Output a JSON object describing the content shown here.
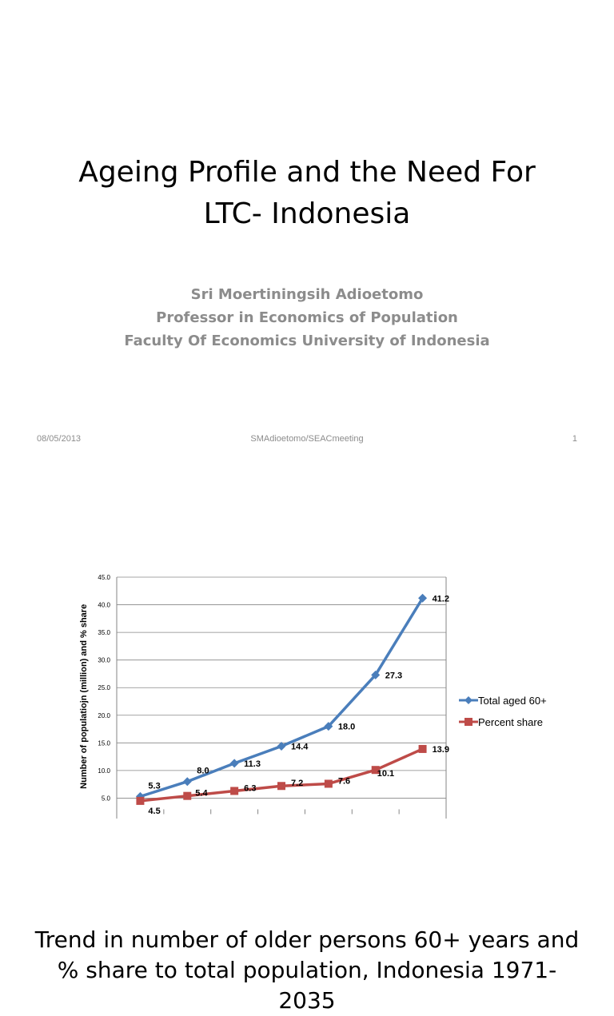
{
  "slide1": {
    "title_lines": [
      "Ageing Profile and the Need For",
      "LTC- Indonesia"
    ],
    "author_lines": [
      "Sri Moertiningsih Adioetomo",
      "Professor in Economics of Population",
      "Faculty Of Economics University of Indonesia"
    ],
    "footer": {
      "date": "08/05/2013",
      "center": "SMAdioetomo/SEACmeeting",
      "page": "1"
    }
  },
  "slide2": {
    "title_lines": [
      "Trend in number of older persons 60+ years and",
      "% share to total population, Indonesia 1971-",
      "2035"
    ]
  },
  "chart_data": {
    "type": "line",
    "ylabel": "Number of populatiojn (million) and % share",
    "ylim": [
      0,
      45
    ],
    "yticks": [
      "45.0",
      "40.0",
      "35.0",
      "30.0",
      "25.0",
      "20.0",
      "15.0",
      "10.0",
      "5.0"
    ],
    "grid": true,
    "legend_position": "right",
    "series": [
      {
        "name": "Total aged 60+",
        "color": "#4a7ebb",
        "marker": "diamond",
        "values": [
          5.3,
          8.0,
          11.3,
          14.4,
          18.0,
          27.3,
          41.2
        ],
        "labels": [
          "5.3",
          "8.0",
          "11.3",
          "14.4",
          "18.0",
          "27.3",
          "41.2"
        ]
      },
      {
        "name": "Percent share",
        "color": "#be4b48",
        "marker": "square",
        "values": [
          4.5,
          5.4,
          6.3,
          7.2,
          7.6,
          10.1,
          13.9
        ],
        "labels": [
          "4.5",
          "5.4",
          "6.3",
          "7.2",
          "7.6",
          "10.1",
          "13.9"
        ]
      }
    ]
  }
}
